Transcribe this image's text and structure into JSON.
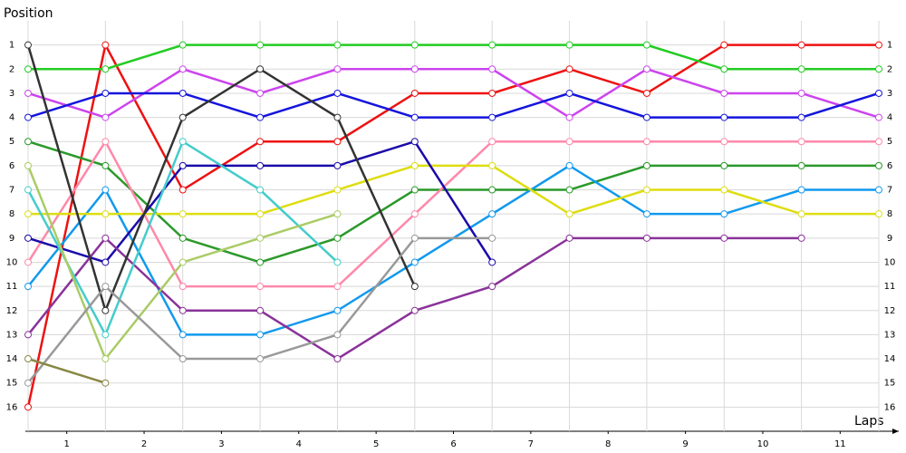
{
  "chart_data": {
    "type": "line",
    "inverted": true,
    "grid": true,
    "ylabel": "Position",
    "xlabel": "Laps",
    "x": [
      0,
      1,
      2,
      3,
      4,
      5,
      6,
      7,
      8,
      9,
      10,
      11
    ],
    "xlim": [
      0,
      11
    ],
    "xticks": [
      {
        "value": 0.5,
        "label": "1"
      },
      {
        "value": 1.5,
        "label": "2"
      },
      {
        "value": 2.5,
        "label": "3"
      },
      {
        "value": 3.5,
        "label": "4"
      },
      {
        "value": 4.5,
        "label": "5"
      },
      {
        "value": 5.5,
        "label": "6"
      },
      {
        "value": 6.5,
        "label": "7"
      },
      {
        "value": 7.5,
        "label": "8"
      },
      {
        "value": 8.5,
        "label": "9"
      },
      {
        "value": 9.5,
        "label": "10"
      },
      {
        "value": 10.5,
        "label": "11"
      }
    ],
    "ylim": [
      0,
      17
    ],
    "yticks": [
      1,
      2,
      3,
      4,
      5,
      6,
      7,
      8,
      9,
      10,
      11,
      12,
      13,
      14,
      15,
      16
    ],
    "series": [
      {
        "color": "#ee1111",
        "values": [
          16,
          1,
          7,
          5,
          5,
          3,
          3,
          2,
          3,
          1,
          1,
          1
        ]
      },
      {
        "color": "#22cc22",
        "values": [
          2,
          2,
          1,
          1,
          1,
          1,
          1,
          1,
          1,
          2,
          2,
          2
        ]
      },
      {
        "color": "#cc44ee",
        "values": [
          3,
          4,
          2,
          3,
          2,
          2,
          2,
          4,
          2,
          3,
          3,
          4
        ]
      },
      {
        "color": "#1515dd",
        "values": [
          4,
          3,
          3,
          4,
          3,
          4,
          4,
          3,
          4,
          4,
          4,
          3
        ]
      },
      {
        "color": "#2a992a",
        "values": [
          5,
          6,
          9,
          10,
          9,
          7,
          7,
          7,
          6,
          6,
          6,
          6
        ]
      },
      {
        "color": "#ff88aa",
        "values": [
          10,
          5,
          11,
          11,
          11,
          8,
          5,
          5,
          5,
          5,
          5,
          5
        ]
      },
      {
        "color": "#1199ee",
        "values": [
          11,
          7,
          13,
          13,
          12,
          10,
          8,
          6,
          8,
          8,
          7,
          7
        ]
      },
      {
        "color": "#dddd11",
        "values": [
          8,
          8,
          8,
          8,
          7,
          6,
          6,
          8,
          7,
          7,
          8,
          8
        ]
      },
      {
        "color": "#1a0aaa",
        "values": [
          9,
          10,
          6,
          6,
          6,
          5,
          10,
          null,
          null,
          null,
          null,
          null
        ]
      },
      {
        "color": "#8a3399",
        "values": [
          13,
          9,
          12,
          12,
          14,
          12,
          11,
          9,
          9,
          9,
          9,
          null
        ]
      },
      {
        "color": "#333333",
        "values": [
          1,
          12,
          4,
          2,
          4,
          11,
          null,
          null,
          null,
          null,
          null,
          null
        ]
      },
      {
        "color": "#44cccc",
        "values": [
          7,
          13,
          5,
          7,
          10,
          null,
          null,
          null,
          null,
          null,
          null,
          null
        ]
      },
      {
        "color": "#aacc66",
        "values": [
          6,
          14,
          10,
          9,
          8,
          null,
          null,
          null,
          null,
          null,
          null,
          null
        ]
      },
      {
        "color": "#999999",
        "values": [
          15,
          11,
          14,
          14,
          13,
          9,
          9,
          null,
          null,
          null,
          null,
          null
        ]
      },
      {
        "color": "#888844",
        "values": [
          14,
          15,
          null,
          null,
          null,
          null,
          null,
          null,
          null,
          null,
          null,
          null
        ]
      }
    ]
  }
}
